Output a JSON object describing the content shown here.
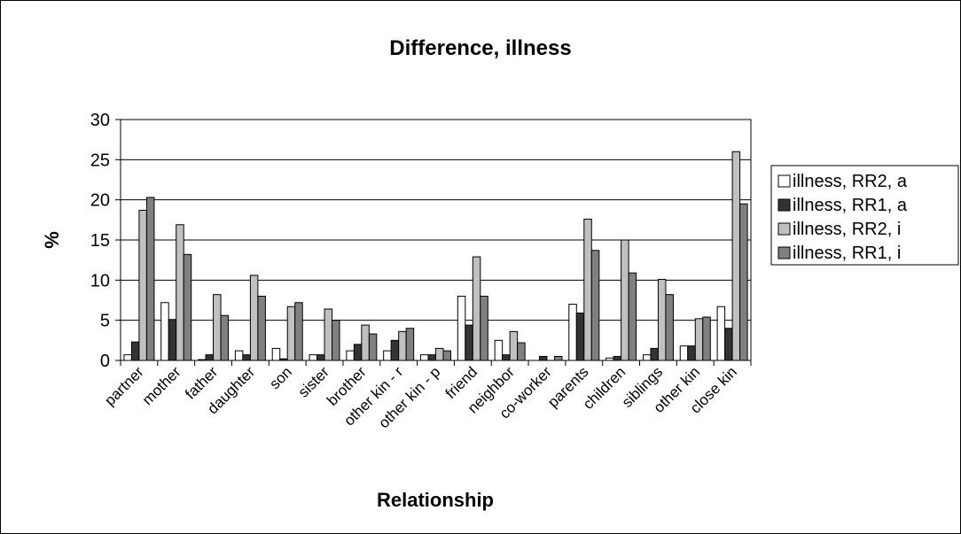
{
  "chart_data": {
    "type": "bar",
    "title": "Difference, illness",
    "xlabel": "Relationship",
    "ylabel": "%",
    "ylim": [
      0,
      30
    ],
    "yticks": [
      0,
      5,
      10,
      15,
      20,
      25,
      30
    ],
    "grid": true,
    "legend_position": "right",
    "categories": [
      "partner",
      "mother",
      "father",
      "daughter",
      "son",
      "sister",
      "brother",
      "other kin - r",
      "other kin - p",
      "friend",
      "neighbor",
      "co-worker",
      "parents",
      "children",
      "siblings",
      "other kin",
      "close kin"
    ],
    "series": [
      {
        "name": "illness, RR2, a",
        "color": "#ffffff",
        "values": [
          0.7,
          7.2,
          0.1,
          1.2,
          1.5,
          0.7,
          1.2,
          1.2,
          0.7,
          8.0,
          2.5,
          0.0,
          7.0,
          0.3,
          0.7,
          1.8,
          6.7
        ]
      },
      {
        "name": "illness, RR1, a",
        "color": "#333333",
        "values": [
          2.3,
          5.1,
          0.7,
          0.7,
          0.2,
          0.7,
          2.0,
          2.5,
          0.7,
          4.4,
          0.7,
          0.5,
          5.9,
          0.5,
          1.5,
          1.8,
          4.0
        ]
      },
      {
        "name": "illness, RR2, i",
        "color": "#c0c0c0",
        "values": [
          18.7,
          16.9,
          8.2,
          10.6,
          6.7,
          6.4,
          4.4,
          3.6,
          1.5,
          12.9,
          3.6,
          0.0,
          17.6,
          15.0,
          10.1,
          5.2,
          26.0
        ]
      },
      {
        "name": "illness, RR1, i",
        "color": "#808080",
        "values": [
          20.3,
          13.2,
          5.6,
          8.0,
          7.2,
          5.0,
          3.3,
          4.0,
          1.2,
          8.0,
          2.2,
          0.5,
          13.7,
          10.9,
          8.2,
          5.4,
          19.5
        ]
      }
    ]
  }
}
